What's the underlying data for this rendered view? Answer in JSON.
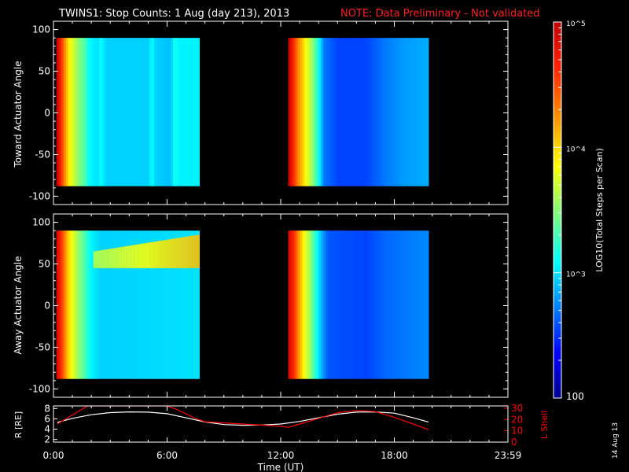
{
  "header": {
    "title": "TWINS1: Stop Counts:  1 Aug (day 213), 2013",
    "note": "NOTE: Data Preliminary - Not validated"
  },
  "footer": {
    "stamp": "14 Aug 13"
  },
  "colors": {
    "note": "#ff2020",
    "lshell": "#ff0000",
    "r_line": "#ffffff",
    "axes": "#ffffff",
    "background": "#000000"
  },
  "chart_data": [
    {
      "type": "heatmap",
      "panel": "toward",
      "ylabel": "Toward Actuator Angle",
      "ylim": [
        -110,
        110
      ],
      "yticks": [
        100,
        50,
        0,
        -50,
        -100
      ],
      "xlim": [
        0,
        24
      ],
      "data_extent_y": [
        -88,
        90
      ],
      "blocks": [
        {
          "t_start": 0.15,
          "t_end": 7.7,
          "profile": [
            [
              0.15,
              5.0
            ],
            [
              0.3,
              4.8
            ],
            [
              0.55,
              4.35
            ],
            [
              0.7,
              4.1
            ],
            [
              0.85,
              3.9
            ],
            [
              1.0,
              3.75
            ],
            [
              1.2,
              3.6
            ],
            [
              1.5,
              3.4
            ],
            [
              1.7,
              3.3
            ],
            [
              1.8,
              3.15
            ],
            [
              2.0,
              3.05
            ],
            [
              2.4,
              3.0
            ],
            [
              2.5,
              3.1
            ],
            [
              2.8,
              2.95
            ],
            [
              5.0,
              2.95
            ],
            [
              5.2,
              3.1
            ],
            [
              5.4,
              2.95
            ],
            [
              6.2,
              2.9
            ],
            [
              6.4,
              3.15
            ],
            [
              6.6,
              3.05
            ],
            [
              7.7,
              3.05
            ]
          ]
        },
        {
          "t_start": 12.4,
          "t_end": 19.8,
          "profile": [
            [
              12.4,
              5.0
            ],
            [
              12.7,
              4.6
            ],
            [
              12.9,
              4.3
            ],
            [
              13.1,
              4.1
            ],
            [
              13.4,
              3.8
            ],
            [
              13.8,
              3.4
            ],
            [
              14.3,
              2.7
            ],
            [
              15.0,
              2.55
            ],
            [
              16.5,
              2.55
            ],
            [
              17.5,
              2.7
            ],
            [
              18.5,
              2.8
            ],
            [
              19.8,
              2.85
            ]
          ]
        }
      ]
    },
    {
      "type": "heatmap",
      "panel": "away",
      "ylabel": "Away Actuator Angle",
      "ylim": [
        -110,
        110
      ],
      "yticks": [
        100,
        50,
        0,
        -50,
        -100
      ],
      "xlim": [
        0,
        24
      ],
      "data_extent_y": [
        -88,
        90
      ],
      "blocks": [
        {
          "t_start": 0.15,
          "t_end": 7.7,
          "profile": [
            [
              0.15,
              4.9
            ],
            [
              0.4,
              4.6
            ],
            [
              0.6,
              4.3
            ],
            [
              0.8,
              4.0
            ],
            [
              1.0,
              3.8
            ],
            [
              1.3,
              3.55
            ],
            [
              1.6,
              3.35
            ],
            [
              1.8,
              3.2
            ],
            [
              2.0,
              3.05
            ],
            [
              2.5,
              2.95
            ],
            [
              7.7,
              3.0
            ]
          ],
          "band": {
            "angle_range": [
              45,
              90
            ],
            "t_start": 2.1,
            "t_end": 7.7,
            "log_value": 4.1
          }
        },
        {
          "t_start": 12.4,
          "t_end": 19.8,
          "profile": [
            [
              12.4,
              4.9
            ],
            [
              12.7,
              4.6
            ],
            [
              12.9,
              4.3
            ],
            [
              13.2,
              3.9
            ],
            [
              13.6,
              3.5
            ],
            [
              14.0,
              3.0
            ],
            [
              14.5,
              2.6
            ],
            [
              16.5,
              2.55
            ],
            [
              17.5,
              2.65
            ],
            [
              19.8,
              2.75
            ]
          ]
        }
      ]
    },
    {
      "type": "line",
      "panel": "ephemeris",
      "ylabel": "R [RE]",
      "ylabel_right": "L Shell",
      "xlabel": "Time (UT)",
      "xticks": [
        "0:00",
        "6:00",
        "12:00",
        "18:00",
        "23:59"
      ],
      "xlim": [
        0,
        24
      ],
      "ylim": [
        1.5,
        8.5
      ],
      "yticks": [
        2,
        4,
        6,
        8
      ],
      "ylim_right": [
        0,
        32
      ],
      "yticks_right": [
        0,
        10,
        20,
        30
      ],
      "series": [
        {
          "axis": "left",
          "x": [
            0.2,
            1,
            2,
            3,
            4,
            5,
            6,
            7,
            8,
            9,
            10,
            11,
            12,
            13,
            14,
            15,
            16,
            17,
            18,
            19,
            19.8
          ],
          "y": [
            5.3,
            6.1,
            6.8,
            7.2,
            7.35,
            7.3,
            7.0,
            6.2,
            5.4,
            4.9,
            4.75,
            4.8,
            5.0,
            5.5,
            6.2,
            6.9,
            7.3,
            7.35,
            7.1,
            6.2,
            5.4
          ]
        },
        {
          "axis": "right",
          "x": [
            0.2,
            1,
            1.8,
            2,
            5,
            6,
            6.5,
            7.5,
            8,
            10,
            12,
            12.4,
            13,
            14,
            15,
            16,
            17,
            18,
            19,
            19.8
          ],
          "y": [
            16,
            24,
            32,
            32,
            32,
            32,
            29,
            21,
            18,
            16,
            14,
            13,
            16,
            21,
            26,
            28,
            27,
            22,
            16,
            11
          ]
        }
      ]
    }
  ],
  "colorbar": {
    "ylabel": "LOG10(Total Steps per Scan)",
    "range_log": [
      2,
      5
    ],
    "ticks": [
      {
        "log": 5,
        "label": "10^5"
      },
      {
        "log": 4,
        "label": "10^4"
      },
      {
        "log": 3,
        "label": "10^3"
      },
      {
        "log": 2,
        "label": "100"
      }
    ]
  }
}
